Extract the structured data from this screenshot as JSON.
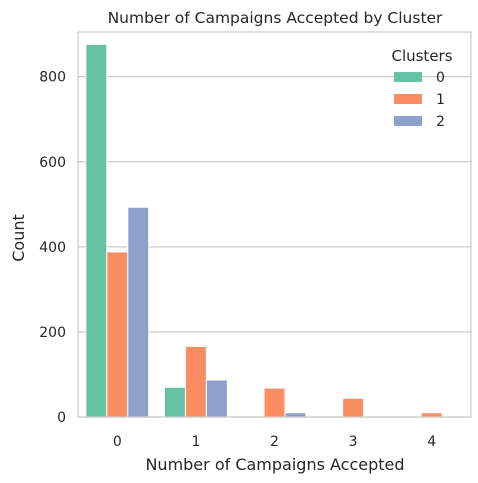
{
  "chart_data": {
    "type": "bar",
    "title": "Number of Campaigns Accepted by Cluster",
    "xlabel": "Number of Campaigns Accepted",
    "ylabel": "Count",
    "categories": [
      "0",
      "1",
      "2",
      "3",
      "4"
    ],
    "ylim": [
      0,
      905
    ],
    "yticks": [
      0,
      200,
      400,
      600,
      800
    ],
    "grid": "horizontal",
    "legend": {
      "title": "Clusters",
      "placement": "top-right"
    },
    "series": [
      {
        "name": "0",
        "color": "#66c2a5",
        "values": [
          876,
          70,
          0,
          0,
          0
        ]
      },
      {
        "name": "1",
        "color": "#fc8d62",
        "values": [
          388,
          166,
          68,
          44,
          10
        ]
      },
      {
        "name": "2",
        "color": "#8da0cb",
        "values": [
          493,
          87,
          10,
          0,
          0
        ]
      }
    ]
  }
}
